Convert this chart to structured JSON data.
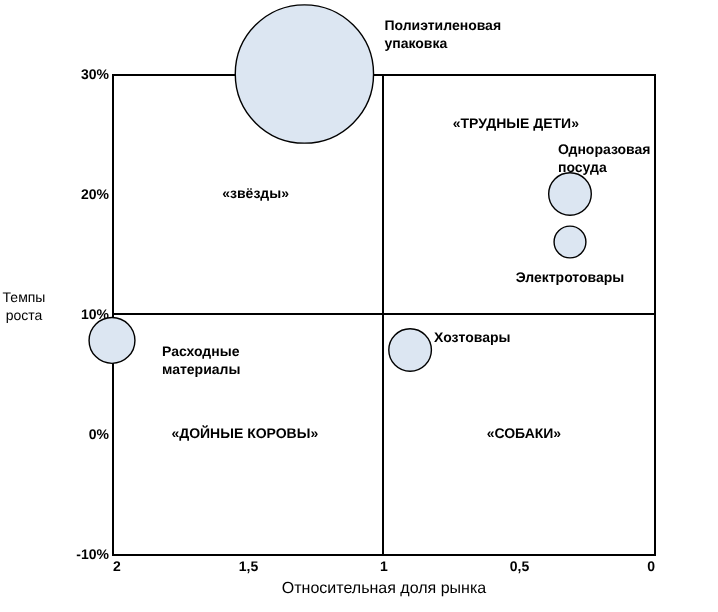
{
  "chart_data": {
    "type": "bubble",
    "xlabel": "Относительная доля рынка",
    "ylabel": "Темпы роста",
    "xlim": [
      2,
      0
    ],
    "xticks": [
      2,
      {
        "value": 1.5,
        "label": "1,5"
      },
      1,
      {
        "value": 0.5,
        "label": "0,5"
      },
      0
    ],
    "ylim": [
      -10,
      30
    ],
    "yticks": [
      {
        "value": -10,
        "label": "-10%"
      },
      {
        "value": 0,
        "label": "0%"
      },
      {
        "value": 10,
        "label": "10%"
      },
      {
        "value": 20,
        "label": "20%"
      },
      {
        "value": 30,
        "label": "30%"
      }
    ],
    "series": [
      {
        "name": "Полиэтиленовая упаковка",
        "color": "#dce6f2",
        "x": [
          1.29
        ],
        "values": [
          30
        ],
        "sizes": [
          1
        ]
      },
      {
        "name": "Одноразовая посуда",
        "color": "#dce6f2",
        "x": [
          0.31
        ],
        "values": [
          20
        ],
        "sizes": [
          0.095
        ]
      },
      {
        "name": "Электротовары",
        "color": "#dce6f2",
        "x": [
          0.31
        ],
        "values": [
          16
        ],
        "sizes": [
          0.053
        ]
      },
      {
        "name": "Расходные материалы",
        "color": "#dce6f2",
        "x": [
          2
        ],
        "values": [
          7.8
        ],
        "sizes": [
          0.11
        ]
      },
      {
        "name": "Хозтовары",
        "color": "#dce6f2",
        "x": [
          0.9
        ],
        "values": [
          7
        ],
        "sizes": [
          0.095
        ]
      }
    ],
    "ref_lines": [
      {
        "axis": "x",
        "value": 1,
        "color": "#000000"
      },
      {
        "axis": "y",
        "value": 10,
        "color": "#000000"
      }
    ],
    "annotations": [
      "«звёзды»",
      "«ТРУДНЫЕ ДЕТИ»",
      "«ДОЙНЫЕ КОРОВЫ»",
      "«СОБАКИ»"
    ],
    "legend": false
  }
}
